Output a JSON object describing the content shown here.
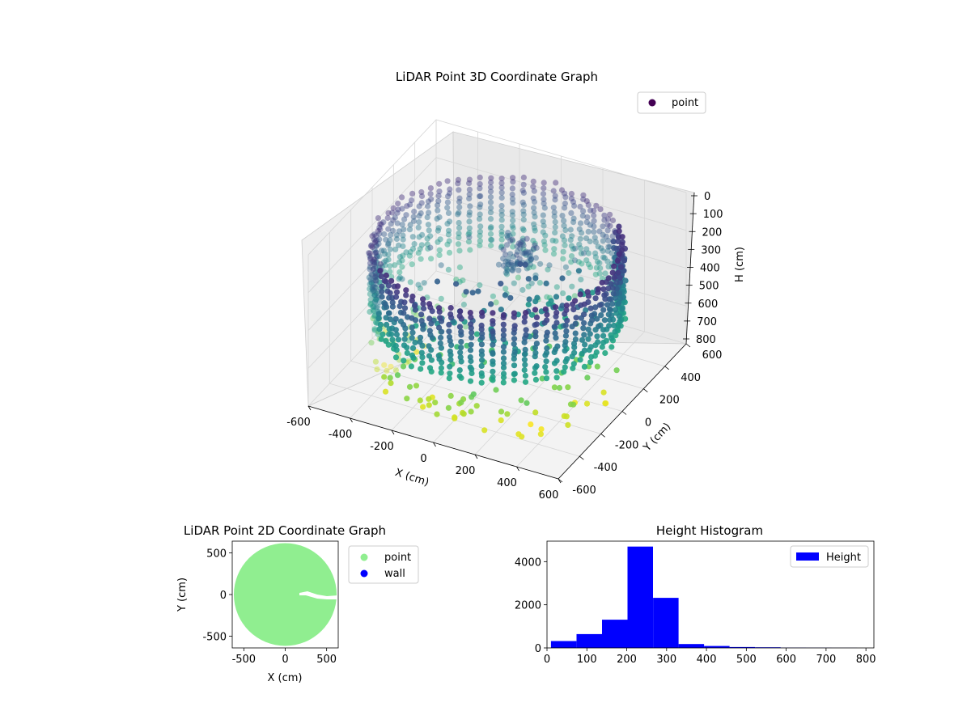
{
  "chart_data": [
    {
      "type": "scatter",
      "projection": "3d",
      "title": "LiDAR Point 3D Coordinate Graph",
      "xlabel": "X (cm)",
      "ylabel": "Y (cm)",
      "zlabel": "H (cm)",
      "xlim": [
        -600,
        600
      ],
      "ylim": [
        -600,
        600
      ],
      "zlim": [
        0,
        800
      ],
      "z_inverted": true,
      "x_ticks": [
        "-600",
        "-400",
        "-200",
        "0",
        "200",
        "400",
        "600"
      ],
      "y_ticks": [
        "-600",
        "-400",
        "-200",
        "0",
        "200",
        "400",
        "600"
      ],
      "z_ticks": [
        "0",
        "100",
        "200",
        "300",
        "400",
        "500",
        "600",
        "700",
        "800"
      ],
      "grid": true,
      "colormap": "viridis",
      "legend": {
        "placement": "top-right",
        "entries": [
          {
            "label": "point",
            "color": "#440154"
          }
        ]
      },
      "description_of_data": {
        "ring_radius": 600,
        "ring_height_range": [
          100,
          500
        ],
        "inner_cluster_height_range": [
          200,
          600
        ],
        "floor_points_height_range": [
          600,
          800
        ]
      }
    },
    {
      "type": "scatter",
      "title": "LiDAR Point 2D Coordinate Graph",
      "xlabel": "X (cm)",
      "ylabel": "Y (cm)",
      "xlim": [
        -640,
        640
      ],
      "ylim": [
        -640,
        640
      ],
      "x_ticks": [
        "-500",
        "0",
        "500"
      ],
      "y_ticks": [
        "-500",
        "0",
        "500"
      ],
      "legend": {
        "placement": "outside-right",
        "entries": [
          {
            "label": "point",
            "color": "#90ee90"
          },
          {
            "label": "wall",
            "color": "#0000ff"
          }
        ]
      },
      "disk": {
        "center": [
          0,
          0
        ],
        "radius": 620,
        "color": "#90ee90"
      }
    },
    {
      "type": "bar",
      "subtype": "histogram",
      "title": "Height Histogram",
      "xlabel": "",
      "ylabel": "",
      "xlim": [
        0,
        820
      ],
      "ylim": [
        0,
        4950
      ],
      "x_ticks": [
        "0",
        "100",
        "200",
        "300",
        "400",
        "500",
        "600",
        "700",
        "800"
      ],
      "y_ticks": [
        "0",
        "2000",
        "4000"
      ],
      "bin_edges": [
        10,
        74,
        138,
        202,
        266,
        330,
        394,
        458,
        522,
        586,
        650,
        714,
        778
      ],
      "values": [
        320,
        640,
        1310,
        4700,
        2320,
        180,
        90,
        40,
        30,
        10,
        8,
        5
      ],
      "bar_color": "#0000ff",
      "legend": {
        "placement": "top-right",
        "entries": [
          {
            "label": "Height",
            "color": "#0000ff"
          }
        ]
      }
    }
  ]
}
